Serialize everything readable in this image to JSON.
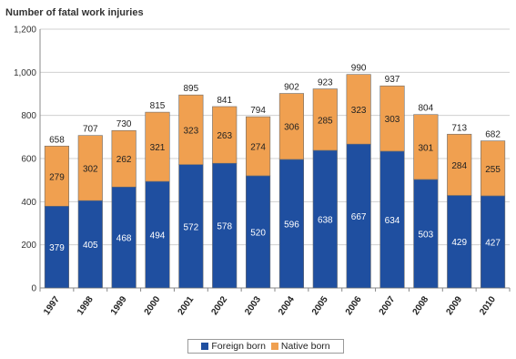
{
  "chart_data": {
    "type": "bar",
    "stacked": true,
    "ylabel": "Number of fatal work injuries",
    "categories": [
      "1997",
      "1998",
      "1999",
      "2000",
      "2001",
      "2002",
      "2003",
      "2004",
      "2005",
      "2006",
      "2007",
      "2008",
      "2009",
      "2010"
    ],
    "series": [
      {
        "name": "Foreign born",
        "color": "#1f4fa0",
        "values": [
          379,
          405,
          468,
          494,
          572,
          578,
          520,
          596,
          638,
          667,
          634,
          503,
          429,
          427
        ]
      },
      {
        "name": "Native born",
        "color": "#f0a050",
        "values": [
          279,
          302,
          262,
          321,
          323,
          263,
          274,
          306,
          285,
          323,
          303,
          301,
          284,
          255
        ]
      }
    ],
    "totals": [
      658,
      707,
      730,
      815,
      895,
      841,
      794,
      902,
      923,
      990,
      937,
      804,
      713,
      682
    ],
    "ylim": [
      0,
      1200
    ],
    "yticks": [
      "0",
      "200",
      "400",
      "600",
      "800",
      "1,000",
      "1,200"
    ],
    "grid": true,
    "legend_position": "bottom"
  }
}
